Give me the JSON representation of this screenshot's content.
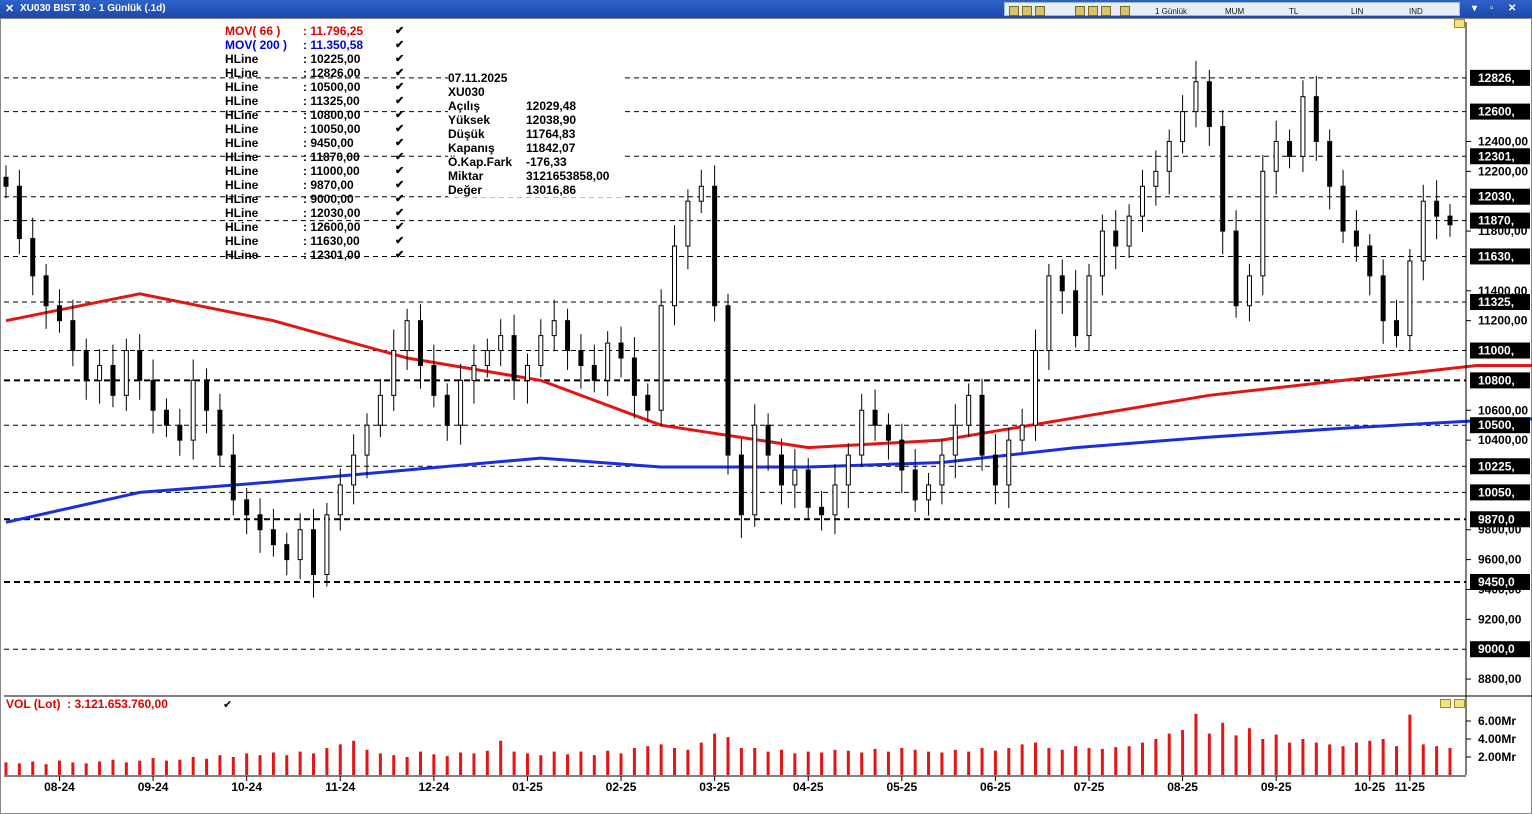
{
  "window": {
    "title": "XU030 BIST 30 - 1 Günlük (.1d)",
    "toolbar": [
      "1 Günlük",
      "MUM",
      "TL",
      "LIN",
      "IND"
    ]
  },
  "mov_legend": [
    {
      "name": "MOV( 66 )",
      "value": ": 11.796,25",
      "color": "#e00000"
    },
    {
      "name": "MOV( 200 )",
      "value": ": 11.350,58",
      "color": "#0000e0"
    }
  ],
  "hline_legend": [
    {
      "name": "HLine",
      "value": ": 10225,00"
    },
    {
      "name": "HLine",
      "value": ": 12826,00"
    },
    {
      "name": "HLine",
      "value": ": 10500,00"
    },
    {
      "name": "HLine",
      "value": ": 11325,00"
    },
    {
      "name": "HLine",
      "value": ": 10800,00"
    },
    {
      "name": "HLine",
      "value": ": 10050,00"
    },
    {
      "name": "HLine",
      "value": ": 9450,00"
    },
    {
      "name": "HLine",
      "value": ": 11870,00"
    },
    {
      "name": "HLine",
      "value": ": 11000,00"
    },
    {
      "name": "HLine",
      "value": ": 9870,00"
    },
    {
      "name": "HLine",
      "value": ": 9000,00"
    },
    {
      "name": "HLine",
      "value": ": 12030,00"
    },
    {
      "name": "HLine",
      "value": ": 12600,00"
    },
    {
      "name": "HLine",
      "value": ": 11630,00"
    },
    {
      "name": "HLine",
      "value": ": 12301,00"
    }
  ],
  "info_box": {
    "date": "07.11.2025",
    "symbol": "XU030",
    "rows": [
      {
        "key": "Açılış",
        "value": "12029,48"
      },
      {
        "key": "Yüksek",
        "value": "12038,90"
      },
      {
        "key": "Düşük",
        "value": "11764,83"
      },
      {
        "key": "Kapanış",
        "value": "11842,07"
      },
      {
        "key": "Ö.Kap.Fark",
        "value": "-176,33"
      },
      {
        "key": "Miktar",
        "value": "3121653858,00"
      },
      {
        "key": "Değer",
        "value": "13016,86"
      }
    ]
  },
  "volume_legend": {
    "name": "VOL (Lot)",
    "value": ": 3.121.653.760,00"
  },
  "chart_data": {
    "type": "candlestick",
    "symbol": "XU030",
    "y_axis": {
      "min": 8700,
      "max": 13200,
      "ticks": [
        {
          "value": 12400,
          "label": "12400,00"
        },
        {
          "value": 12200,
          "label": "12200,00"
        },
        {
          "value": 11800,
          "label": "11800,00"
        },
        {
          "value": 11400,
          "label": "11400,00"
        },
        {
          "value": 11200,
          "label": "11200,00"
        },
        {
          "value": 10600,
          "label": "10600,00"
        },
        {
          "value": 10400,
          "label": "10400,00"
        },
        {
          "value": 9800,
          "label": "9800,00"
        },
        {
          "value": 9600,
          "label": "9600,00"
        },
        {
          "value": 9400,
          "label": "9400,00"
        },
        {
          "value": 9200,
          "label": "9200,00"
        },
        {
          "value": 8800,
          "label": "8800,00"
        }
      ]
    },
    "hlines": [
      {
        "value": 12826,
        "label": "12826,",
        "bold": false
      },
      {
        "value": 12600,
        "label": "12600,",
        "bold": false
      },
      {
        "value": 12301,
        "label": "12301,",
        "bold": false
      },
      {
        "value": 12030,
        "label": "12030,",
        "bold": false
      },
      {
        "value": 11870,
        "label": "11870,",
        "bold": false
      },
      {
        "value": 11630,
        "label": "11630,",
        "bold": false
      },
      {
        "value": 11325,
        "label": "11325,",
        "bold": false
      },
      {
        "value": 11000,
        "label": "11000,",
        "bold": false
      },
      {
        "value": 10800,
        "label": "10800,",
        "bold": true
      },
      {
        "value": 10500,
        "label": "10500,",
        "bold": false
      },
      {
        "value": 10225,
        "label": "10225,",
        "bold": false
      },
      {
        "value": 10050,
        "label": "10050,",
        "bold": false
      },
      {
        "value": 9870,
        "label": "9870,0",
        "bold": true
      },
      {
        "value": 9450,
        "label": "9450,0",
        "bold": true
      },
      {
        "value": 9000,
        "label": "9000,0",
        "bold": false
      }
    ],
    "x_labels": [
      "08-24",
      "09-24",
      "10-24",
      "11-24",
      "12-24",
      "01-25",
      "02-25",
      "03-25",
      "04-25",
      "05-25",
      "06-25",
      "07-25",
      "08-25",
      "09-25",
      "10-25",
      "11-25"
    ],
    "closes": [
      [
        12100,
        11750,
        11500,
        11300,
        11200,
        11000,
        10800
      ],
      [
        10900,
        10700,
        11000,
        10800,
        10600,
        10500,
        10400
      ],
      [
        10800,
        10600,
        10300,
        10000,
        9900,
        9800,
        9700
      ],
      [
        9600,
        9800,
        9500,
        9900,
        10100,
        10300,
        10500
      ],
      [
        10700,
        11000,
        11200,
        10900,
        10700,
        10500,
        10800
      ],
      [
        10900,
        11000,
        11100,
        10800,
        10900,
        11100,
        11200
      ],
      [
        11000,
        10900,
        10800,
        11050,
        10950,
        10700,
        10600
      ],
      [
        11300,
        11700,
        12000,
        12100,
        11300,
        10300,
        9900
      ],
      [
        10500,
        10300,
        10100,
        10200,
        9950,
        9900,
        10100
      ],
      [
        10300,
        10600,
        10500,
        10400,
        10200,
        10000,
        10100
      ],
      [
        10300,
        10500,
        10700,
        10300,
        10100,
        10400,
        10500
      ],
      [
        11000,
        11500,
        11400,
        11100,
        11500,
        11800,
        11700
      ],
      [
        11900,
        12100,
        12200,
        12400,
        12600,
        12800,
        12500
      ],
      [
        11800,
        11300,
        11500,
        12200,
        12400,
        12300,
        12700
      ],
      [
        12400,
        12100,
        11800,
        11700,
        11500,
        11200,
        11100
      ],
      [
        11600,
        12000,
        11900,
        11842
      ]
    ],
    "mov66_path": [
      [
        0,
        11200
      ],
      [
        10,
        11380
      ],
      [
        20,
        11200
      ],
      [
        30,
        10950
      ],
      [
        40,
        10800
      ],
      [
        49,
        10500
      ],
      [
        60,
        10350
      ],
      [
        70,
        10400
      ],
      [
        80,
        10550
      ],
      [
        90,
        10700
      ],
      [
        100,
        10800
      ],
      [
        110,
        10900
      ],
      [
        120,
        10900
      ],
      [
        125,
        10700
      ],
      [
        130,
        10950
      ],
      [
        140,
        10700
      ],
      [
        150,
        10550
      ],
      [
        160,
        10400
      ],
      [
        170,
        10450
      ],
      [
        180,
        10650
      ],
      [
        190,
        10900
      ],
      [
        200,
        11300
      ],
      [
        210,
        11650
      ],
      [
        218,
        11700
      ],
      [
        225,
        11850
      ],
      [
        235,
        11870
      ],
      [
        240,
        11800
      ],
      [
        247,
        11790
      ],
      [
        250,
        11796
      ]
    ],
    "mov200_path": [
      [
        0,
        9850
      ],
      [
        10,
        10050
      ],
      [
        20,
        10120
      ],
      [
        30,
        10200
      ],
      [
        40,
        10280
      ],
      [
        49,
        10220
      ],
      [
        60,
        10220
      ],
      [
        70,
        10250
      ],
      [
        80,
        10350
      ],
      [
        90,
        10420
      ],
      [
        100,
        10480
      ],
      [
        110,
        10530
      ],
      [
        120,
        10560
      ],
      [
        130,
        10680
      ],
      [
        140,
        10640
      ],
      [
        150,
        10580
      ],
      [
        160,
        10540
      ],
      [
        170,
        10530
      ],
      [
        180,
        10560
      ],
      [
        190,
        10680
      ],
      [
        200,
        10820
      ],
      [
        210,
        10960
      ],
      [
        220,
        11080
      ],
      [
        230,
        11150
      ],
      [
        240,
        11250
      ],
      [
        250,
        11350
      ]
    ],
    "volume_axis": {
      "min": 0,
      "max": 7,
      "ticks": [
        {
          "value": 6,
          "label": "6.00Mr"
        },
        {
          "value": 4,
          "label": "4.00Mr"
        },
        {
          "value": 2,
          "label": "2.00Mr"
        }
      ]
    },
    "volumes": [
      [
        1.4,
        1.3,
        1.5,
        1.2,
        1.6,
        1.4,
        1.3
      ],
      [
        1.5,
        1.7,
        1.4,
        1.6,
        1.9,
        1.6,
        1.7
      ],
      [
        2.0,
        1.8,
        2.2,
        2.0,
        2.4,
        2.2,
        2.5
      ],
      [
        2.2,
        2.6,
        2.4,
        3.0,
        3.4,
        3.8,
        2.8
      ],
      [
        2.4,
        2.2,
        2.0,
        2.6,
        2.3,
        2.1,
        2.5
      ],
      [
        2.4,
        2.7,
        3.8,
        2.6,
        2.4,
        2.2,
        2.6
      ],
      [
        2.3,
        2.6,
        2.2,
        2.7,
        2.4,
        3.0,
        3.2
      ],
      [
        3.4,
        3.0,
        2.8,
        3.6,
        4.6,
        4.2,
        3.0
      ],
      [
        3.0,
        2.6,
        2.8,
        2.4,
        2.6,
        2.5,
        2.8
      ],
      [
        2.7,
        2.5,
        2.9,
        2.6,
        3.0,
        2.8,
        2.6
      ],
      [
        2.5,
        2.8,
        2.6,
        3.0,
        2.7,
        3.0,
        3.4
      ],
      [
        3.6,
        3.0,
        2.8,
        3.2,
        3.0,
        2.9,
        3.1
      ],
      [
        3.2,
        3.6,
        4.0,
        4.6,
        5.0,
        6.8,
        4.6
      ],
      [
        5.8,
        4.4,
        5.2,
        4.0,
        4.5,
        3.6,
        4.0
      ],
      [
        3.6,
        3.4,
        3.2,
        3.6,
        3.8,
        4.0,
        3.2
      ],
      [
        6.7,
        3.4,
        3.2,
        3.0
      ]
    ]
  }
}
